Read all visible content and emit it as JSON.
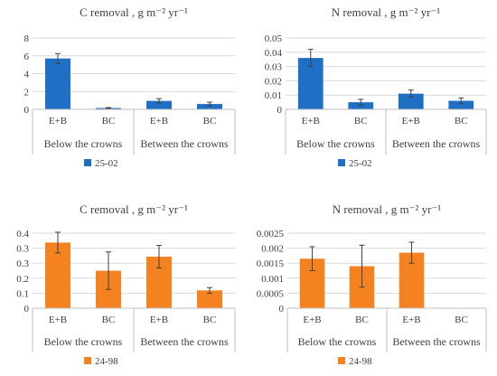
{
  "chart_data": [
    {
      "type": "bar",
      "title": "C removal , g m⁻² yr⁻¹",
      "categories": [
        "E+B",
        "BC",
        "E+B",
        "BC"
      ],
      "groups": [
        "Below the crowns",
        "Between the crowns"
      ],
      "series": [
        {
          "name": "25-02",
          "values": [
            5.7,
            0.15,
            0.95,
            0.6
          ],
          "errors": [
            0.55,
            0.05,
            0.25,
            0.2
          ]
        }
      ],
      "ylim": [
        0,
        8
      ],
      "yticks": [
        "0",
        "2",
        "4",
        "6",
        "8"
      ],
      "color": "#1f6fc5",
      "grid": true,
      "legend": "bottom"
    },
    {
      "type": "bar",
      "title": "N removal , g m⁻² yr⁻¹",
      "categories": [
        "E+B",
        "BC",
        "E+B",
        "BC"
      ],
      "groups": [
        "Below the crowns",
        "Between the crowns"
      ],
      "series": [
        {
          "name": "25-02",
          "values": [
            0.036,
            0.005,
            0.011,
            0.006
          ],
          "errors": [
            0.006,
            0.002,
            0.0025,
            0.002
          ]
        }
      ],
      "ylim": [
        0,
        0.05
      ],
      "yticks": [
        "0",
        "0.01",
        "0.02",
        "0.03",
        "0.04",
        "0.05"
      ],
      "color": "#1f6fc5",
      "grid": true,
      "legend": "bottom"
    },
    {
      "type": "bar",
      "title": "C removal , g m⁻² yr⁻¹",
      "categories": [
        "E+B",
        "BC",
        "E+B",
        "BC"
      ],
      "groups": [
        "Below the crowns",
        "Between the crowns"
      ],
      "series": [
        {
          "name": "24-98",
          "values": [
            0.35,
            0.2,
            0.275,
            0.095
          ],
          "errors": [
            0.055,
            0.1,
            0.06,
            0.015
          ]
        }
      ],
      "ylim": [
        0,
        0.4
      ],
      "yticks": [
        "0",
        "0.1",
        "0.2",
        "0.3",
        "0.3",
        "0.4"
      ],
      "color": "#f58220",
      "grid": true,
      "legend": "bottom"
    },
    {
      "type": "bar",
      "title": "N removal , g m⁻² yr⁻¹",
      "categories": [
        "E+B",
        "BC",
        "E+B",
        "BC"
      ],
      "groups": [
        "Below the crowns",
        "Between the crowns"
      ],
      "series": [
        {
          "name": "24-98",
          "values": [
            0.00165,
            0.0014,
            0.00185,
            0
          ],
          "errors": [
            0.0004,
            0.0007,
            0.00035,
            0
          ]
        }
      ],
      "ylim": [
        0,
        0.0025
      ],
      "yticks": [
        "0",
        "0.0005",
        "0.001",
        "0.0015",
        "0.002",
        "0.0025"
      ],
      "color": "#f58220",
      "grid": true,
      "legend": "bottom"
    }
  ]
}
